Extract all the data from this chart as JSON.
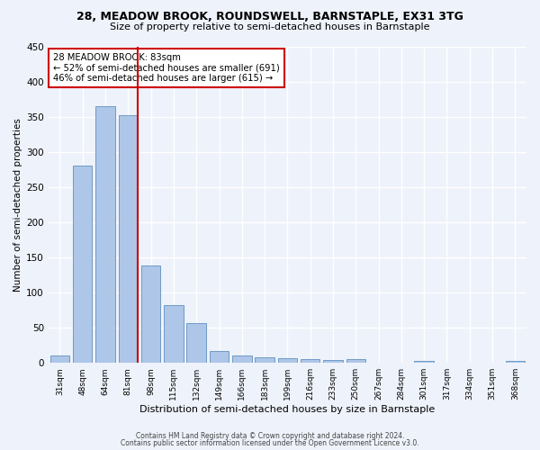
{
  "title": "28, MEADOW BROOK, ROUNDSWELL, BARNSTAPLE, EX31 3TG",
  "subtitle": "Size of property relative to semi-detached houses in Barnstaple",
  "xlabel": "Distribution of semi-detached houses by size in Barnstaple",
  "ylabel": "Number of semi-detached properties",
  "bar_labels": [
    "31sqm",
    "48sqm",
    "64sqm",
    "81sqm",
    "98sqm",
    "115sqm",
    "132sqm",
    "149sqm",
    "166sqm",
    "183sqm",
    "199sqm",
    "216sqm",
    "233sqm",
    "250sqm",
    "267sqm",
    "284sqm",
    "301sqm",
    "317sqm",
    "334sqm",
    "351sqm",
    "368sqm"
  ],
  "bar_values": [
    10,
    280,
    365,
    352,
    138,
    82,
    57,
    17,
    10,
    8,
    7,
    5,
    4,
    5,
    0,
    0,
    3,
    0,
    0,
    0,
    3
  ],
  "bar_color": "#aec6e8",
  "bar_edge_color": "#6090c0",
  "vline_color": "#cc0000",
  "annotation_line1": "28 MEADOW BROOK: 83sqm",
  "annotation_line2": "← 52% of semi-detached houses are smaller (691)",
  "annotation_line3": "46% of semi-detached houses are larger (615) →",
  "annotation_box_color": "#ffffff",
  "annotation_edge_color": "#cc0000",
  "footer1": "Contains HM Land Registry data © Crown copyright and database right 2024.",
  "footer2": "Contains public sector information licensed under the Open Government Licence v3.0.",
  "bg_color": "#eef2fa",
  "ylim": [
    0,
    450
  ],
  "grid_color": "#ffffff"
}
